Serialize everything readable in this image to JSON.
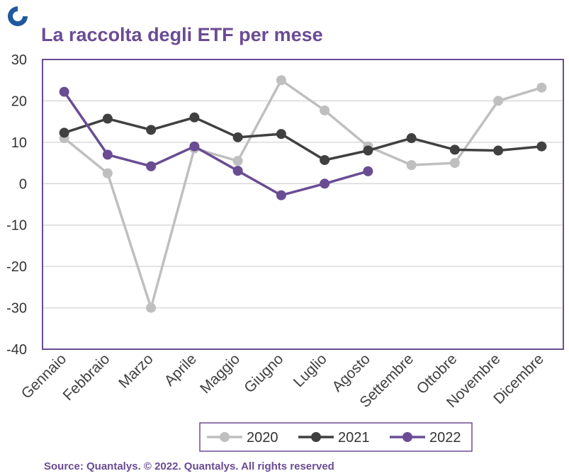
{
  "header": {
    "title": "La raccolta degli ETF per mese",
    "logo_icon": "quantalys-ring-icon"
  },
  "footer": {
    "source": "Source: Quantalys. © 2022. Quantalys. All rights reserved"
  },
  "colors": {
    "title": "#6a4c93",
    "series_2020": "#bfbfbf",
    "series_2021": "#404040",
    "series_2022": "#6a4c93",
    "frame": "#6a4c93",
    "grid": "#d9d9d9",
    "logo": "#1f5a9e"
  },
  "chart_data": {
    "type": "line",
    "title": "La raccolta degli ETF per mese",
    "xlabel": "",
    "ylabel": "",
    "ylim": [
      -40,
      30
    ],
    "yticks": [
      30,
      20,
      10,
      0,
      -10,
      -20,
      -30,
      -40
    ],
    "grid": true,
    "legend_position": "bottom-right",
    "categories": [
      "Gennaio",
      "Febbraio",
      "Marzo",
      "Aprile",
      "Maggio",
      "Giugno",
      "Luglio",
      "Agosto",
      "Settembre",
      "Ottobre",
      "Novembre",
      "Dicembre"
    ],
    "series": [
      {
        "name": "2020",
        "values": [
          11,
          2.5,
          -30,
          8.5,
          5.5,
          25,
          17.7,
          9,
          4.5,
          5,
          20,
          23.2
        ]
      },
      {
        "name": "2021",
        "values": [
          12.3,
          15.7,
          13,
          16,
          11.2,
          12,
          5.7,
          8,
          11,
          8.2,
          8,
          9
        ]
      },
      {
        "name": "2022",
        "values": [
          22.2,
          7,
          4.2,
          9,
          3.1,
          -2.8,
          0,
          3,
          null,
          null,
          null,
          null
        ]
      }
    ]
  }
}
